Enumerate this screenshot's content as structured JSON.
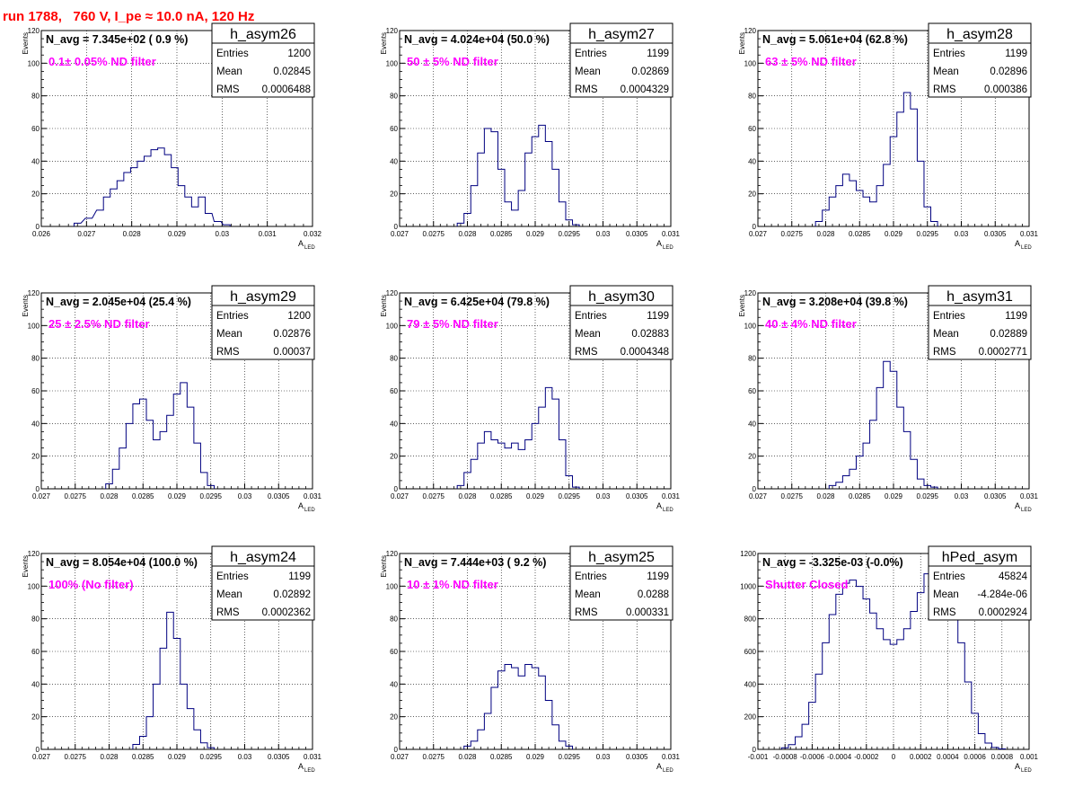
{
  "header": {
    "title": "run 1788,   760 V, I_pe ≈ 10.0 nA, 120 Hz",
    "title_color": "#ff0000"
  },
  "style": {
    "line_color": "#000080",
    "annotation_color": "#ff00ff",
    "grid_color": "#000000"
  },
  "chart_data": [
    {
      "type": "histogram",
      "name": "h_asym26",
      "stats": {
        "Entries": "1200",
        "Mean": "0.02845",
        "RMS": "0.0006488"
      },
      "navg": "N_avg = 7.345e+02 ( 0.9 %)",
      "annotation": "0.1± 0.05% ND filter",
      "xlabel": "A",
      "xlabel_sub": "LED",
      "ylabel": "Events",
      "xlim": [
        0.026,
        0.032
      ],
      "ylim": [
        0,
        120
      ],
      "xticks": [
        "0.026",
        "0.027",
        "0.028",
        "0.029",
        "0.03",
        "0.031",
        "0.032"
      ],
      "yticks": [
        "0",
        "20",
        "40",
        "60",
        "80",
        "100",
        "120"
      ],
      "bins": [
        [
          0.0268,
          2
        ],
        [
          0.02705,
          5
        ],
        [
          0.0273,
          10
        ],
        [
          0.02745,
          18
        ],
        [
          0.0276,
          23
        ],
        [
          0.02775,
          28
        ],
        [
          0.0279,
          33
        ],
        [
          0.02805,
          36
        ],
        [
          0.0282,
          40
        ],
        [
          0.02835,
          43
        ],
        [
          0.0285,
          47
        ],
        [
          0.02865,
          48
        ],
        [
          0.0288,
          44
        ],
        [
          0.02895,
          36
        ],
        [
          0.0291,
          25
        ],
        [
          0.02925,
          18
        ],
        [
          0.0294,
          12
        ],
        [
          0.02955,
          18
        ],
        [
          0.0297,
          8
        ],
        [
          0.0299,
          3
        ],
        [
          0.0301,
          1
        ]
      ],
      "grid": true
    },
    {
      "type": "histogram",
      "name": "h_asym27",
      "stats": {
        "Entries": "1199",
        "Mean": "0.02869",
        "RMS": "0.0004329"
      },
      "navg": "N_avg = 4.024e+04 (50.0 %)",
      "annotation": "50 ± 5% ND filter",
      "xlabel": "A",
      "xlabel_sub": "LED",
      "ylabel": "Events",
      "xlim": [
        0.027,
        0.031
      ],
      "ylim": [
        0,
        120
      ],
      "xticks": [
        "0.027",
        "0.0275",
        "0.028",
        "0.0285",
        "0.029",
        "0.0295",
        "0.03",
        "0.0305",
        "0.031"
      ],
      "yticks": [
        "0",
        "20",
        "40",
        "60",
        "80",
        "100",
        "120"
      ],
      "bins": [
        [
          0.0279,
          2
        ],
        [
          0.028,
          8
        ],
        [
          0.0281,
          25
        ],
        [
          0.0282,
          45
        ],
        [
          0.0283,
          60
        ],
        [
          0.0284,
          58
        ],
        [
          0.0285,
          35
        ],
        [
          0.0286,
          15
        ],
        [
          0.0287,
          10
        ],
        [
          0.0288,
          22
        ],
        [
          0.0289,
          45
        ],
        [
          0.029,
          55
        ],
        [
          0.0291,
          62
        ],
        [
          0.0292,
          52
        ],
        [
          0.0293,
          35
        ],
        [
          0.0294,
          15
        ],
        [
          0.0295,
          4
        ],
        [
          0.0296,
          1
        ]
      ],
      "grid": true
    },
    {
      "type": "histogram",
      "name": "h_asym28",
      "stats": {
        "Entries": "1199",
        "Mean": "0.02896",
        "RMS": "0.000386"
      },
      "navg": "N_avg = 5.061e+04 (62.8 %)",
      "annotation": "63 ± 5% ND filter",
      "xlabel": "A",
      "xlabel_sub": "LED",
      "ylabel": "Events",
      "xlim": [
        0.027,
        0.031
      ],
      "ylim": [
        0,
        120
      ],
      "xticks": [
        "0.027",
        "0.0275",
        "0.028",
        "0.0285",
        "0.029",
        "0.0295",
        "0.03",
        "0.0305",
        "0.031"
      ],
      "yticks": [
        "0",
        "20",
        "40",
        "60",
        "80",
        "100",
        "120"
      ],
      "bins": [
        [
          0.0279,
          3
        ],
        [
          0.028,
          10
        ],
        [
          0.0281,
          18
        ],
        [
          0.0282,
          25
        ],
        [
          0.0283,
          32
        ],
        [
          0.0284,
          28
        ],
        [
          0.0285,
          22
        ],
        [
          0.0286,
          18
        ],
        [
          0.0287,
          15
        ],
        [
          0.0288,
          25
        ],
        [
          0.0289,
          38
        ],
        [
          0.029,
          55
        ],
        [
          0.0291,
          70
        ],
        [
          0.0292,
          82
        ],
        [
          0.0293,
          72
        ],
        [
          0.0294,
          40
        ],
        [
          0.0295,
          12
        ],
        [
          0.0296,
          3
        ]
      ],
      "grid": true
    },
    {
      "type": "histogram",
      "name": "h_asym29",
      "stats": {
        "Entries": "1200",
        "Mean": "0.02876",
        "RMS": "0.00037"
      },
      "navg": "N_avg = 2.045e+04 (25.4 %)",
      "annotation": "25 ± 2.5% ND filter",
      "xlabel": "A",
      "xlabel_sub": "LED",
      "ylabel": "Events",
      "xlim": [
        0.027,
        0.031
      ],
      "ylim": [
        0,
        120
      ],
      "xticks": [
        "0.027",
        "0.0275",
        "0.028",
        "0.0285",
        "0.029",
        "0.0295",
        "0.03",
        "0.0305",
        "0.031"
      ],
      "yticks": [
        "0",
        "20",
        "40",
        "60",
        "80",
        "100",
        "120"
      ],
      "bins": [
        [
          0.028,
          3
        ],
        [
          0.0281,
          12
        ],
        [
          0.0282,
          25
        ],
        [
          0.0283,
          40
        ],
        [
          0.0284,
          52
        ],
        [
          0.0285,
          55
        ],
        [
          0.0286,
          42
        ],
        [
          0.0287,
          30
        ],
        [
          0.0288,
          35
        ],
        [
          0.0289,
          45
        ],
        [
          0.029,
          58
        ],
        [
          0.0291,
          65
        ],
        [
          0.0292,
          50
        ],
        [
          0.0293,
          28
        ],
        [
          0.0294,
          10
        ],
        [
          0.0295,
          2
        ]
      ],
      "grid": true
    },
    {
      "type": "histogram",
      "name": "h_asym30",
      "stats": {
        "Entries": "1199",
        "Mean": "0.02883",
        "RMS": "0.0004348"
      },
      "navg": "N_avg = 6.425e+04 (79.8 %)",
      "annotation": "79 ± 5% ND filter",
      "xlabel": "A",
      "xlabel_sub": "LED",
      "ylabel": "Events",
      "xlim": [
        0.027,
        0.031
      ],
      "ylim": [
        0,
        120
      ],
      "xticks": [
        "0.027",
        "0.0275",
        "0.028",
        "0.0285",
        "0.029",
        "0.0295",
        "0.03",
        "0.0305",
        "0.031"
      ],
      "yticks": [
        "0",
        "20",
        "40",
        "60",
        "80",
        "100",
        "120"
      ],
      "bins": [
        [
          0.0279,
          2
        ],
        [
          0.028,
          10
        ],
        [
          0.0281,
          18
        ],
        [
          0.0282,
          28
        ],
        [
          0.0283,
          35
        ],
        [
          0.0284,
          30
        ],
        [
          0.0285,
          28
        ],
        [
          0.0286,
          25
        ],
        [
          0.0287,
          28
        ],
        [
          0.0288,
          24
        ],
        [
          0.0289,
          30
        ],
        [
          0.029,
          40
        ],
        [
          0.0291,
          50
        ],
        [
          0.0292,
          62
        ],
        [
          0.0293,
          55
        ],
        [
          0.0294,
          30
        ],
        [
          0.0295,
          8
        ],
        [
          0.0296,
          1
        ]
      ],
      "grid": true
    },
    {
      "type": "histogram",
      "name": "h_asym31",
      "stats": {
        "Entries": "1199",
        "Mean": "0.02889",
        "RMS": "0.0002771"
      },
      "navg": "N_avg = 3.208e+04 (39.8 %)",
      "annotation": "40 ± 4% ND filter",
      "xlabel": "A",
      "xlabel_sub": "LED",
      "ylabel": "Events",
      "xlim": [
        0.027,
        0.031
      ],
      "ylim": [
        0,
        120
      ],
      "xticks": [
        "0.027",
        "0.0275",
        "0.028",
        "0.0285",
        "0.029",
        "0.0295",
        "0.03",
        "0.0305",
        "0.031"
      ],
      "yticks": [
        "0",
        "20",
        "40",
        "60",
        "80",
        "100",
        "120"
      ],
      "bins": [
        [
          0.0281,
          2
        ],
        [
          0.0282,
          4
        ],
        [
          0.0283,
          8
        ],
        [
          0.0284,
          12
        ],
        [
          0.0285,
          20
        ],
        [
          0.0286,
          28
        ],
        [
          0.0287,
          42
        ],
        [
          0.0288,
          62
        ],
        [
          0.0289,
          78
        ],
        [
          0.029,
          72
        ],
        [
          0.0291,
          50
        ],
        [
          0.0292,
          35
        ],
        [
          0.0293,
          18
        ],
        [
          0.0294,
          6
        ],
        [
          0.0295,
          2
        ],
        [
          0.0296,
          1
        ]
      ],
      "grid": true
    },
    {
      "type": "histogram",
      "name": "h_asym24",
      "stats": {
        "Entries": "1199",
        "Mean": "0.02892",
        "RMS": "0.0002362"
      },
      "navg": "N_avg = 8.054e+04 (100.0 %)",
      "annotation": "100% (No filter)",
      "xlabel": "A",
      "xlabel_sub": "LED",
      "ylabel": "Events",
      "xlim": [
        0.027,
        0.031
      ],
      "ylim": [
        0,
        120
      ],
      "xticks": [
        "0.027",
        "0.0275",
        "0.028",
        "0.0285",
        "0.029",
        "0.0295",
        "0.03",
        "0.0305",
        "0.031"
      ],
      "yticks": [
        "0",
        "20",
        "40",
        "60",
        "80",
        "100",
        "120"
      ],
      "bins": [
        [
          0.0284,
          3
        ],
        [
          0.0285,
          8
        ],
        [
          0.0286,
          20
        ],
        [
          0.0287,
          40
        ],
        [
          0.0288,
          62
        ],
        [
          0.0289,
          84
        ],
        [
          0.029,
          68
        ],
        [
          0.0291,
          40
        ],
        [
          0.0292,
          25
        ],
        [
          0.0293,
          12
        ],
        [
          0.0294,
          4
        ],
        [
          0.0295,
          1
        ]
      ],
      "grid": true
    },
    {
      "type": "histogram",
      "name": "h_asym25",
      "stats": {
        "Entries": "1199",
        "Mean": "0.0288",
        "RMS": "0.000331"
      },
      "navg": "N_avg = 7.444e+03 ( 9.2 %)",
      "annotation": "10 ± 1% ND filter",
      "xlabel": "A",
      "xlabel_sub": "LED",
      "ylabel": "Events",
      "xlim": [
        0.027,
        0.031
      ],
      "ylim": [
        0,
        120
      ],
      "xticks": [
        "0.027",
        "0.0275",
        "0.028",
        "0.0285",
        "0.029",
        "0.0295",
        "0.03",
        "0.0305",
        "0.031"
      ],
      "yticks": [
        "0",
        "20",
        "40",
        "60",
        "80",
        "100",
        "120"
      ],
      "bins": [
        [
          0.028,
          2
        ],
        [
          0.0281,
          5
        ],
        [
          0.0282,
          12
        ],
        [
          0.0283,
          22
        ],
        [
          0.0284,
          38
        ],
        [
          0.0285,
          48
        ],
        [
          0.0286,
          52
        ],
        [
          0.0287,
          50
        ],
        [
          0.0288,
          45
        ],
        [
          0.0289,
          52
        ],
        [
          0.029,
          50
        ],
        [
          0.0291,
          45
        ],
        [
          0.0292,
          30
        ],
        [
          0.0293,
          15
        ],
        [
          0.0294,
          5
        ],
        [
          0.0295,
          2
        ]
      ],
      "grid": true
    },
    {
      "type": "histogram",
      "name": "hPed_asym",
      "stats": {
        "Entries": "45824",
        "Mean": "-4.284e-06",
        "RMS": "0.0002924"
      },
      "navg": "N_avg = -3.325e-03 (-0.0%)",
      "annotation": "Shutter Closed",
      "xlabel": "A",
      "xlabel_sub": "LED",
      "ylabel": "",
      "xlim": [
        -0.001,
        0.001
      ],
      "ylim": [
        0,
        1250
      ],
      "xticks": [
        "-0.001",
        "-0.0008",
        "-0.0006",
        "-0.0004",
        "-0.0002",
        "0",
        "0.0002",
        "0.0004",
        "0.0006",
        "0.0008",
        "0.001"
      ],
      "yticks": [
        "0",
        "200",
        "400",
        "600",
        "800",
        "1000",
        "1200"
      ],
      "bins": [
        [
          -0.0008,
          10
        ],
        [
          -0.00075,
          30
        ],
        [
          -0.0007,
          80
        ],
        [
          -0.00065,
          160
        ],
        [
          -0.0006,
          300
        ],
        [
          -0.00055,
          480
        ],
        [
          -0.0005,
          680
        ],
        [
          -0.00045,
          860
        ],
        [
          -0.0004,
          990
        ],
        [
          -0.00035,
          1060
        ],
        [
          -0.0003,
          1080
        ],
        [
          -0.00025,
          1040
        ],
        [
          -0.0002,
          960
        ],
        [
          -0.00015,
          870
        ],
        [
          -0.0001,
          770
        ],
        [
          -5e-05,
          700
        ],
        [
          0,
          670
        ],
        [
          5e-05,
          700
        ],
        [
          0.0001,
          770
        ],
        [
          0.00015,
          880
        ],
        [
          0.0002,
          1000
        ],
        [
          0.00025,
          1120
        ],
        [
          0.0003,
          1200
        ],
        [
          0.00035,
          1230
        ],
        [
          0.0004,
          1140
        ],
        [
          0.00045,
          930
        ],
        [
          0.0005,
          680
        ],
        [
          0.00055,
          430
        ],
        [
          0.0006,
          230
        ],
        [
          0.00065,
          100
        ],
        [
          0.0007,
          40
        ],
        [
          0.00075,
          12
        ],
        [
          0.0008,
          3
        ]
      ],
      "grid": true
    }
  ]
}
